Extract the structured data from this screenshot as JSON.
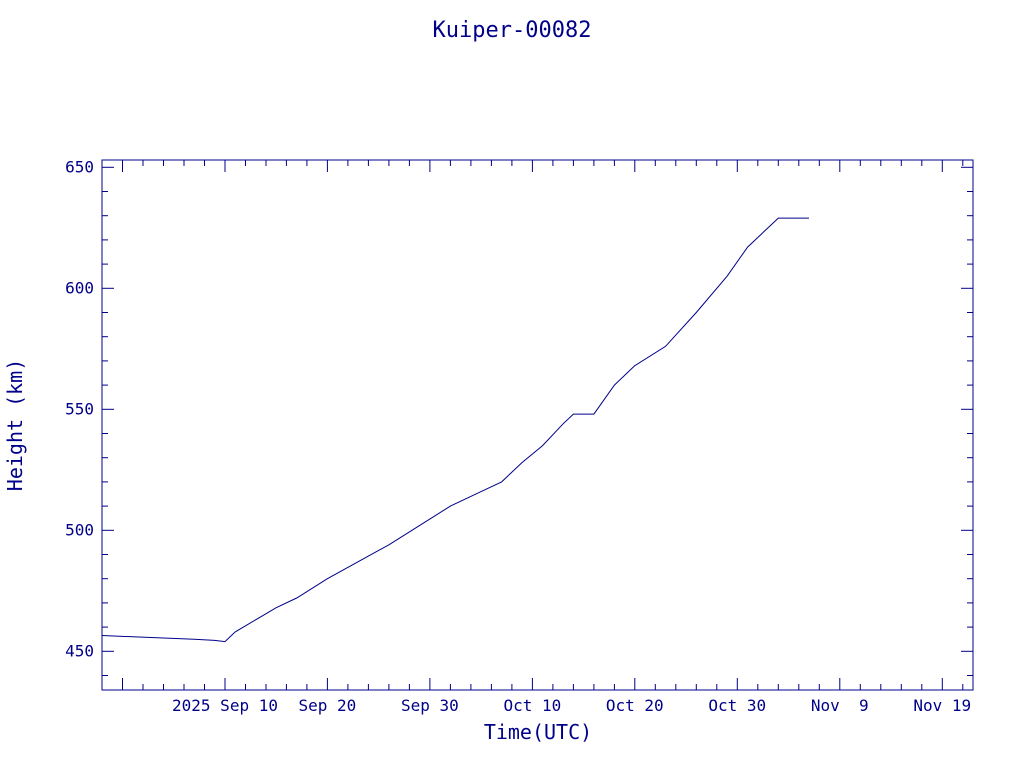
{
  "chart_data": {
    "type": "line",
    "title": "Kuiper-00082",
    "xlabel": "Time(UTC)",
    "ylabel": "Height (km)",
    "x_ticks": [
      "2025 Sep 10",
      "Sep 20",
      "Sep 30",
      "Oct 10",
      "Oct 20",
      "Oct 30",
      "Nov  9",
      "Nov 19"
    ],
    "x_range": [
      "2025-08-29",
      "2025-11-22"
    ],
    "ylim": [
      434,
      653
    ],
    "y_ticks": [
      450,
      500,
      550,
      600,
      650
    ],
    "grid": false,
    "color": "#000088",
    "series": [
      {
        "x": [
          "2025-08-29",
          "2025-09-01",
          "2025-09-04",
          "2025-09-07",
          "2025-09-09",
          "2025-09-10",
          "2025-09-11",
          "2025-09-13",
          "2025-09-15",
          "2025-09-17",
          "2025-09-20",
          "2025-09-23",
          "2025-09-26",
          "2025-09-29",
          "2025-10-02",
          "2025-10-05",
          "2025-10-07",
          "2025-10-09",
          "2025-10-11",
          "2025-10-13",
          "2025-10-14",
          "2025-10-16",
          "2025-10-18",
          "2025-10-20",
          "2025-10-23",
          "2025-10-26",
          "2025-10-29",
          "2025-10-31",
          "2025-11-03",
          "2025-11-06"
        ],
        "y": [
          456.5,
          456,
          455.5,
          455,
          454.5,
          454,
          458,
          463,
          468,
          472,
          480,
          487,
          494,
          502,
          510,
          516,
          520,
          528,
          535,
          544,
          548,
          548,
          560,
          568,
          576,
          590,
          605,
          617,
          629,
          629
        ]
      }
    ]
  }
}
